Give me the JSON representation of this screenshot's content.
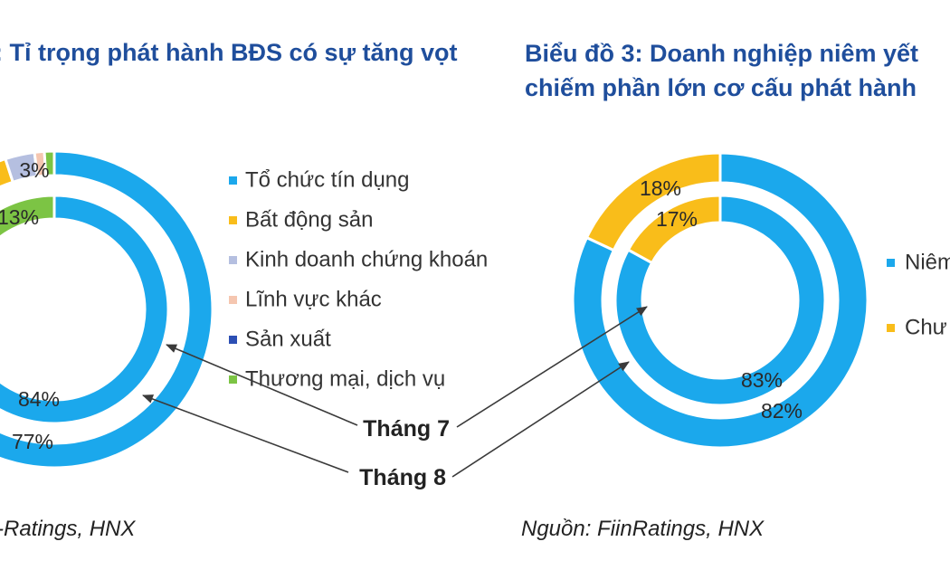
{
  "left_panel": {
    "title": ": Tỉ trọng phát hành BĐS có sự tăng vọt",
    "source": "-Ratings, HNX"
  },
  "right_panel": {
    "title_line1": "Biểu đồ 3: Doanh nghiệp niêm yết",
    "title_line2": "chiếm phần lớn cơ cấu phát hành",
    "source": "Nguồn: FiinRatings, HNX"
  },
  "annotations": {
    "month_7": "Tháng 7",
    "month_8": "Tháng 8"
  },
  "chart_data": [
    {
      "type": "donut",
      "legend_position": "right",
      "rings": [
        {
          "name": "Tháng 8",
          "ring": "outer",
          "values": [
            77,
            18,
            3,
            1,
            0,
            1
          ]
        },
        {
          "name": "Tháng 7",
          "ring": "inner",
          "values": [
            84,
            2,
            0.5,
            0.5,
            0,
            13
          ]
        }
      ],
      "categories": [
        "Tổ chức tín dụng",
        "Bất động sản",
        "Kinh doanh chứng khoán",
        "Lĩnh vực khác",
        "Sản xuất",
        "Thương mại, dịch vụ"
      ],
      "colors": [
        "#1ba8ec",
        "#f9bd1a",
        "#b5bfe0",
        "#f5c6b0",
        "#2c4fb4",
        "#7cc444"
      ],
      "labels": [
        {
          "ring": "outer",
          "category": "Kinh doanh chứng khoán",
          "text": "3%"
        },
        {
          "ring": "inner",
          "category": "Thương mại, dịch vụ",
          "text": "13%"
        },
        {
          "ring": "inner",
          "category": "Tổ chức tín dụng",
          "text": "84%"
        },
        {
          "ring": "outer",
          "category": "Tổ chức tín dụng",
          "text": "77%"
        }
      ]
    },
    {
      "type": "donut",
      "legend_position": "right",
      "rings": [
        {
          "name": "Tháng 8",
          "ring": "outer",
          "values": [
            82,
            18
          ]
        },
        {
          "name": "Tháng 7",
          "ring": "inner",
          "values": [
            83,
            17
          ]
        }
      ],
      "categories": [
        "Niêm",
        "Chư"
      ],
      "colors": [
        "#1ba8ec",
        "#f9bd1a"
      ],
      "labels": [
        {
          "ring": "outer",
          "category": "Chư",
          "text": "18%"
        },
        {
          "ring": "inner",
          "category": "Chư",
          "text": "17%"
        },
        {
          "ring": "inner",
          "category": "Niêm",
          "text": "83%"
        },
        {
          "ring": "outer",
          "category": "Niêm",
          "text": "82%"
        }
      ]
    }
  ]
}
